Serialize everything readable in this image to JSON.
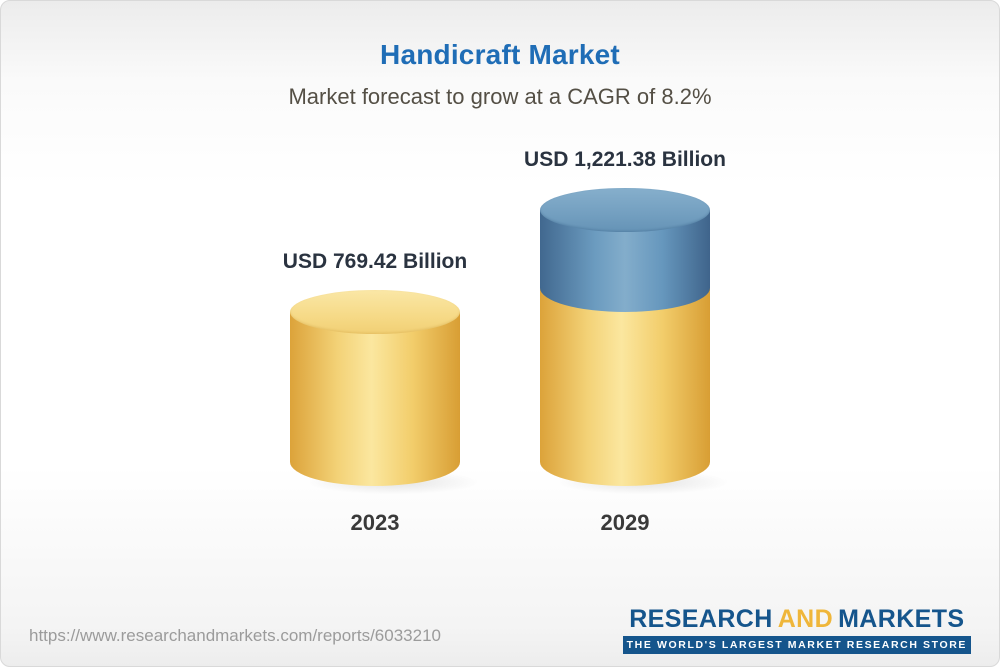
{
  "header": {
    "title": "Handicraft Market",
    "subtitle": "Market forecast to grow at a CAGR of 8.2%"
  },
  "chart_data": {
    "type": "bar",
    "style": "3d-cylinder",
    "title": "Handicraft Market",
    "subtitle": "Market forecast to grow at a CAGR of 8.2%",
    "unit": "USD Billion",
    "cagr_percent": 8.2,
    "categories": [
      "2023",
      "2029"
    ],
    "values": [
      769.42,
      1221.38
    ],
    "points": [
      {
        "category": "2023",
        "value": 769.42,
        "label": "USD 769.42 Billion"
      },
      {
        "category": "2029",
        "value": 1221.38,
        "label": "USD 1,221.38 Billion"
      }
    ],
    "colors": {
      "base_segment": "#F2CE6B",
      "growth_segment": "#6C9BBF",
      "title": "#1F6DB6",
      "value_label": "#2A3340"
    },
    "ylim": [
      0,
      1221.38
    ],
    "grid": false,
    "legend": "none"
  },
  "footer": {
    "url": "https://www.researchandmarkets.com/reports/6033210",
    "logo": {
      "part1": "RESEARCH",
      "part2": "AND",
      "part3": "MARKETS",
      "tagline": "THE WORLD'S LARGEST MARKET RESEARCH STORE"
    }
  }
}
